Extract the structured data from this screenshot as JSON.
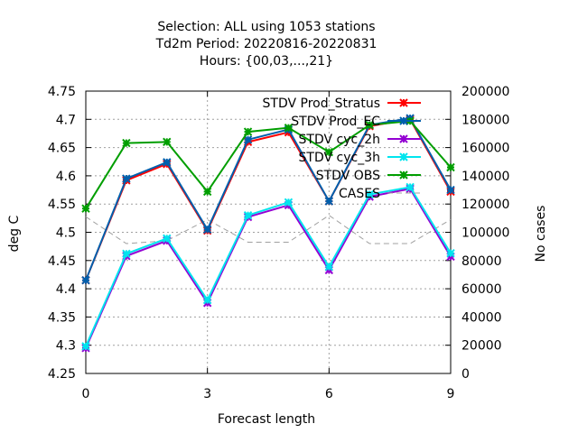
{
  "chart_data": {
    "type": "line",
    "title_lines": [
      "Selection: ALL using  1053 stations",
      "Td2m   Period: 20220816-20220831",
      "Hours: {00,03,...,21}"
    ],
    "xlabel": "Forecast length",
    "ylabel": "deg C",
    "y2label": "No cases",
    "xlim": [
      0,
      9
    ],
    "ylim": [
      4.25,
      4.75
    ],
    "y2lim": [
      0,
      200000
    ],
    "x_ticks": [
      0,
      3,
      6,
      9
    ],
    "y_ticks": [
      "4.25",
      "4.3",
      "4.35",
      "4.4",
      "4.45",
      "4.5",
      "4.55",
      "4.6",
      "4.65",
      "4.7",
      "4.75"
    ],
    "y2_ticks": [
      "0",
      "20000",
      "40000",
      "60000",
      "80000",
      "100000",
      "120000",
      "140000",
      "160000",
      "180000",
      "200000"
    ],
    "grid": true,
    "legend_position": "top-right",
    "x": [
      0,
      1,
      2,
      3,
      4,
      5,
      6,
      7,
      8,
      9
    ],
    "series": [
      {
        "name": "STDV Prod_Stratus",
        "color": "#ff0000",
        "axis": "y",
        "values": [
          4.415,
          4.592,
          4.621,
          4.503,
          4.66,
          4.677,
          4.555,
          4.688,
          4.7,
          4.572
        ]
      },
      {
        "name": "STDV Prod_EC",
        "color": "#0060ad",
        "axis": "y",
        "values": [
          4.415,
          4.595,
          4.624,
          4.505,
          4.664,
          4.682,
          4.555,
          4.69,
          4.702,
          4.575
        ]
      },
      {
        "name": "STDV cyc_2h",
        "color": "#9400d3",
        "axis": "y",
        "values": [
          4.295,
          4.458,
          4.485,
          4.375,
          4.527,
          4.548,
          4.433,
          4.563,
          4.577,
          4.457
        ]
      },
      {
        "name": "STDV cyc_3h",
        "color": "#00e5ee",
        "axis": "y",
        "values": [
          4.298,
          4.462,
          4.489,
          4.38,
          4.53,
          4.553,
          4.439,
          4.567,
          4.58,
          4.463
        ]
      },
      {
        "name": "STDV OBS",
        "color": "#009e00",
        "axis": "y",
        "values": [
          4.542,
          4.658,
          4.66,
          4.572,
          4.678,
          4.685,
          4.642,
          4.69,
          4.697,
          4.615
        ]
      },
      {
        "name": "CASES",
        "color": "#a0a0a0",
        "axis": "y2",
        "dashed": true,
        "values": [
          111000,
          92000,
          94000,
          109000,
          93000,
          93000,
          112000,
          92000,
          92000,
          109000
        ]
      }
    ]
  }
}
